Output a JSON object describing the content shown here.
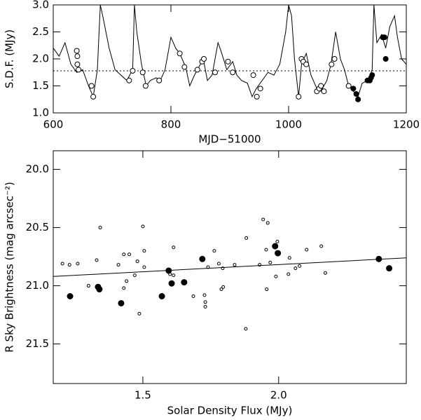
{
  "chart_data": [
    {
      "type": "line",
      "xlabel": "MJD−51000",
      "ylabel": "S.D.F. (MJy)",
      "xlim": [
        600,
        1200
      ],
      "ylim": [
        1.0,
        3.0
      ],
      "xticks": [
        600,
        800,
        1000,
        1200
      ],
      "yticks": [
        {
          "value": 1.0,
          "label": "1.0"
        },
        1.5,
        {
          "value": 2.0,
          "label": "2.0"
        },
        2.5,
        {
          "value": 3.0,
          "label": "3.0"
        }
      ],
      "hline": 1.78,
      "color": "#000000",
      "series": [
        {
          "style": "line",
          "x": [
            600,
            610,
            620,
            630,
            640,
            650,
            660,
            668,
            675,
            680,
            685,
            695,
            705,
            715,
            725,
            735,
            738,
            742,
            750,
            758,
            765,
            775,
            782,
            790,
            800,
            808,
            815,
            825,
            832,
            840,
            850,
            855,
            862,
            870,
            880,
            885,
            895,
            905,
            912,
            920,
            930,
            938,
            945,
            955,
            965,
            975,
            985,
            995,
            1000,
            1005,
            1010,
            1017,
            1022,
            1030,
            1038,
            1048,
            1055,
            1065,
            1072,
            1080,
            1088,
            1095,
            1102,
            1110,
            1118,
            1125,
            1135,
            1142,
            1145,
            1150,
            1158,
            1165,
            1172,
            1180,
            1185,
            1192,
            1200
          ],
          "values": [
            2.2,
            2.05,
            2.3,
            1.9,
            1.75,
            1.8,
            1.5,
            1.3,
            1.8,
            3.0,
            2.75,
            2.2,
            1.8,
            1.7,
            1.6,
            1.8,
            3.0,
            2.5,
            1.9,
            1.5,
            1.6,
            1.65,
            1.6,
            1.8,
            2.4,
            2.2,
            2.1,
            1.85,
            1.5,
            1.7,
            1.9,
            2.0,
            1.6,
            1.7,
            2.3,
            2.15,
            1.8,
            1.95,
            1.7,
            1.6,
            1.55,
            1.3,
            1.45,
            1.6,
            1.75,
            1.7,
            1.9,
            2.5,
            3.0,
            2.8,
            2.0,
            1.3,
            1.9,
            2.1,
            1.7,
            1.45,
            1.4,
            1.6,
            1.9,
            2.5,
            2.0,
            1.8,
            1.5,
            1.4,
            1.3,
            1.55,
            1.6,
            1.8,
            3.0,
            2.3,
            2.45,
            2.2,
            2.6,
            2.8,
            2.4,
            2.0,
            1.9
          ]
        },
        {
          "style": "open",
          "x": [
            640,
            641,
            641,
            643,
            665,
            668,
            729,
            735,
            752,
            757,
            780,
            815,
            823,
            845,
            853,
            856,
            875,
            897,
            905,
            940,
            946,
            952,
            1017,
            1022,
            1025,
            1030,
            1048,
            1052,
            1055,
            1060,
            1073,
            1078,
            1102
          ],
          "values": [
            2.15,
            2.05,
            1.9,
            1.8,
            1.5,
            1.3,
            1.6,
            1.78,
            1.75,
            1.5,
            1.6,
            2.1,
            1.85,
            1.8,
            1.95,
            2.0,
            1.75,
            1.95,
            1.75,
            1.7,
            1.3,
            1.45,
            1.3,
            2.0,
            1.95,
            1.9,
            1.4,
            1.45,
            1.5,
            1.4,
            1.9,
            2.0,
            1.5
          ]
        },
        {
          "style": "filled",
          "x": [
            1110,
            1115,
            1118,
            1134,
            1138,
            1140,
            1142,
            1160,
            1163,
            1165
          ],
          "values": [
            1.45,
            1.35,
            1.25,
            1.6,
            1.6,
            1.65,
            1.7,
            2.4,
            2.4,
            2.0
          ]
        }
      ]
    },
    {
      "type": "scatter",
      "xlabel": "Solar Density Flux (MJy)",
      "ylabel": "R Sky Brightness (mag arcsec⁻²)",
      "xlim": [
        1.17,
        2.47
      ],
      "ylim": [
        21.84,
        19.84
      ],
      "xticks": [
        1.5,
        {
          "value": 2.0,
          "label": "2.0"
        }
      ],
      "yticks": [
        {
          "value": 20.0,
          "label": "20.0"
        },
        20.5,
        {
          "value": 21.0,
          "label": "21.0"
        },
        21.5
      ],
      "color": "#000000",
      "series": [
        {
          "style": "open",
          "x": [
            1.343,
            1.204,
            1.23,
            1.26,
            1.3,
            1.33,
            1.41,
            1.43,
            1.45,
            1.44,
            1.43,
            1.47,
            1.48,
            1.5,
            1.505,
            1.505,
            1.487,
            1.613,
            1.613,
            1.6,
            1.686,
            1.727,
            1.73,
            1.73,
            1.74,
            1.763,
            1.78,
            1.794,
            1.789,
            1.796,
            1.838,
            1.881,
            1.879,
            1.93,
            1.943,
            1.96,
            1.954,
            1.956,
            1.969,
            1.99,
            1.995,
            2.04,
            2.036,
            2.062,
            2.077,
            2.103,
            2.157,
            2.172
          ],
          "values": [
            20.5,
            20.81,
            20.82,
            20.81,
            21.0,
            20.78,
            20.82,
            20.73,
            20.73,
            20.96,
            21.02,
            20.91,
            20.79,
            20.49,
            20.7,
            20.84,
            21.24,
            20.67,
            20.91,
            20.9,
            21.09,
            21.08,
            21.14,
            21.18,
            20.84,
            20.7,
            20.81,
            20.85,
            21.03,
            21.01,
            20.82,
            20.59,
            21.37,
            20.82,
            20.43,
            20.46,
            20.69,
            21.03,
            20.8,
            20.92,
            20.62,
            20.76,
            20.9,
            20.85,
            20.83,
            20.69,
            20.66,
            20.89
          ]
        },
        {
          "style": "filled",
          "x": [
            1.232,
            1.335,
            1.34,
            1.42,
            1.57,
            1.595,
            1.606,
            1.652,
            1.719,
            1.987,
            1.997,
            2.369,
            2.407
          ],
          "values": [
            21.09,
            21.01,
            21.03,
            21.15,
            21.09,
            20.87,
            20.98,
            20.97,
            20.77,
            20.66,
            20.72,
            20.77,
            20.85
          ]
        },
        {
          "style": "line",
          "x": [
            1.17,
            2.47
          ],
          "values": [
            20.92,
            20.76
          ]
        }
      ]
    }
  ]
}
